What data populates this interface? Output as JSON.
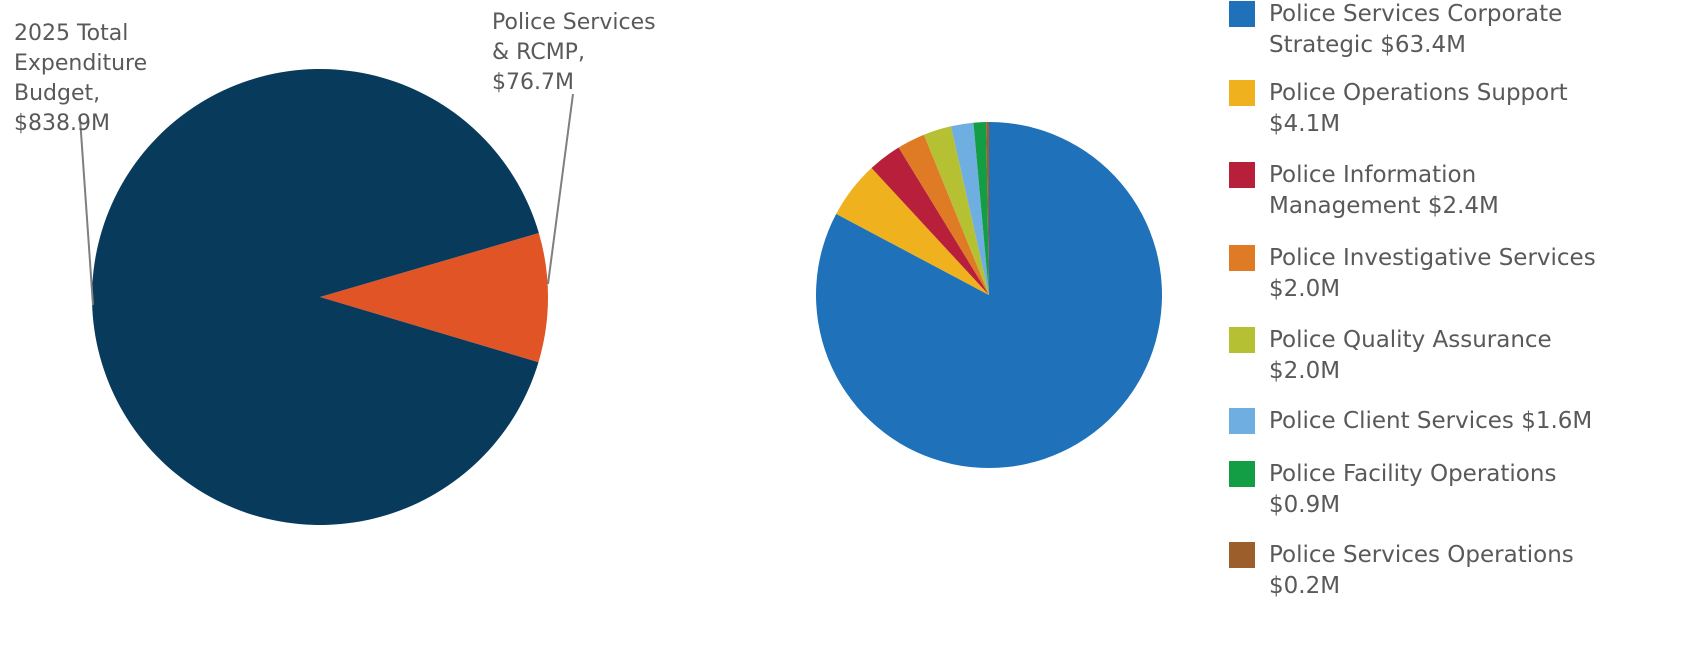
{
  "chart_data": [
    {
      "type": "pie",
      "title": "",
      "start_angle_deg": 73.7,
      "slices": [
        {
          "label_lines": [
            "Police Services",
            "& RCMP,",
            "$76.7M"
          ],
          "value": 76.7,
          "color": "#e05425"
        },
        {
          "label_lines": [
            "2025 Total",
            "Expenditure",
            "Budget,",
            "$838.9M"
          ],
          "value": 762.2,
          "color": "#083a5b"
        }
      ]
    },
    {
      "type": "pie",
      "title": "",
      "start_angle_deg": 0,
      "legend_position": "right",
      "slices": [
        {
          "legend_lines": [
            "Police Services Corporate",
            "Strategic $63.4M"
          ],
          "value": 63.4,
          "color": "#1f72ba"
        },
        {
          "legend_lines": [
            "Police Operations Support",
            "$4.1M"
          ],
          "value": 4.1,
          "color": "#f0b11e"
        },
        {
          "legend_lines": [
            "Police Information",
            "Management $2.4M"
          ],
          "value": 2.4,
          "color": "#b81f3a"
        },
        {
          "legend_lines": [
            "Police Investigative Services",
            "$2.0M"
          ],
          "value": 2.0,
          "color": "#e07b25"
        },
        {
          "legend_lines": [
            "Police Quality Assurance",
            "$2.0M"
          ],
          "value": 2.0,
          "color": "#b5c032"
        },
        {
          "legend_lines": [
            "Police Client Services $1.6M"
          ],
          "value": 1.6,
          "color": "#6faee0"
        },
        {
          "legend_lines": [
            "Police Facility Operations",
            "$0.9M"
          ],
          "value": 0.9,
          "color": "#139e45"
        },
        {
          "legend_lines": [
            "Police Services Operations",
            "$0.2M"
          ],
          "value": 0.2,
          "color": "#9c5f2c"
        }
      ]
    }
  ]
}
